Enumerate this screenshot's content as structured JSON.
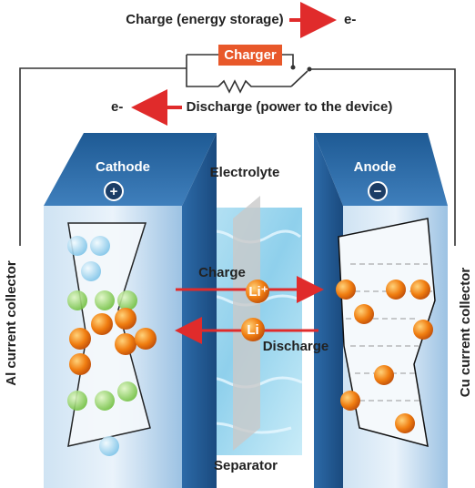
{
  "header": {
    "charge_label": "Charge (energy storage)",
    "charge_electron": "e-",
    "charger": "Charger",
    "discharge_electron": "e-",
    "discharge_label": "Discharge (power to the device)"
  },
  "electrodes": {
    "cathode": {
      "label": "Cathode",
      "sign": "+",
      "collector": "Al current collector"
    },
    "anode": {
      "label": "Anode",
      "sign": "−",
      "collector": "Cu current collector"
    }
  },
  "electrolyte": {
    "label": "Electrolyte",
    "separator": "Separator",
    "charge_label": "Charge",
    "charge_ion": "Li⁺",
    "discharge_label": "Discharge",
    "discharge_ion": "Li"
  }
}
